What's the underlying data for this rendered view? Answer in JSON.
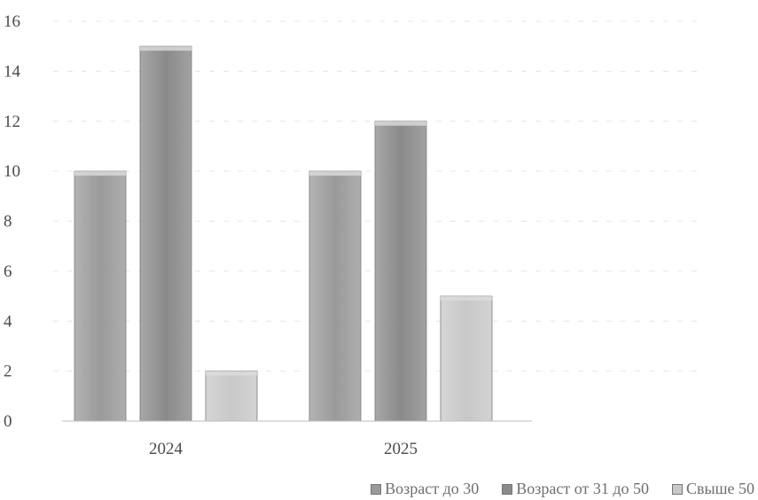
{
  "chart_data": {
    "type": "bar",
    "categories": [
      "2024",
      "2025"
    ],
    "series": [
      {
        "name": "Возраст до 30",
        "values": [
          10,
          10
        ],
        "color": "#9a9a9a"
      },
      {
        "name": "Возраст от 31 до 50",
        "values": [
          15,
          12
        ],
        "color": "#8a8a8a"
      },
      {
        "name": "Свыше 50",
        "values": [
          2,
          5
        ],
        "color": "#c8c8c8"
      }
    ],
    "ylim": [
      0,
      16
    ],
    "yticks": [
      0,
      2,
      4,
      6,
      8,
      10,
      12,
      14,
      16
    ],
    "grid": true,
    "legend_position": "bottom-right",
    "title": "",
    "xlabel": "",
    "ylabel": ""
  }
}
